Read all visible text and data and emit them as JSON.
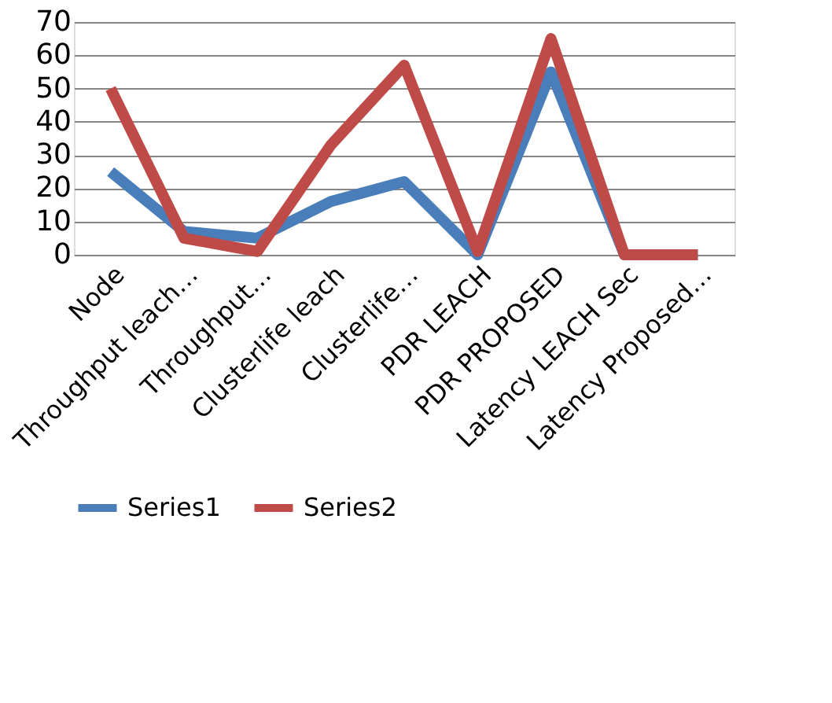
{
  "chart_data": {
    "type": "line",
    "categories": [
      "Node",
      "Throughput leach…",
      "Throughput…",
      "Clusterlife leach",
      "Clusterlife…",
      "PDR LEACH",
      "PDR PROPOSED",
      "Latency LEACH Sec",
      "Latency Proposed…"
    ],
    "series": [
      {
        "name": "Series1",
        "color": "#4a7ebb",
        "values": [
          25,
          7,
          5,
          16,
          22,
          0,
          55,
          0,
          0
        ]
      },
      {
        "name": "Series2",
        "color": "#be4b48",
        "values": [
          50,
          5,
          1,
          33,
          57,
          1,
          65,
          0,
          0
        ]
      }
    ],
    "ylim": [
      0,
      70
    ],
    "yticks": [
      0,
      10,
      20,
      30,
      40,
      50,
      60,
      70
    ],
    "grid": "y",
    "legend": "bottom",
    "marker": "none",
    "line_style": "solid"
  }
}
